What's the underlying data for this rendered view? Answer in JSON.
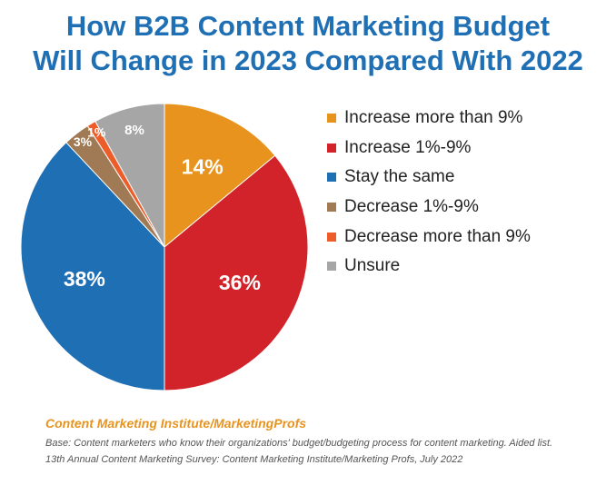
{
  "title_lines": [
    "How B2B Content Marketing Budget",
    "Will Change in 2023 Compared With 2022"
  ],
  "chart_data": {
    "type": "pie",
    "title": "How B2B Content Marketing Budget Will Change in 2023 Compared With 2022",
    "categories": [
      "Increase more than 9%",
      "Increase 1%-9%",
      "Stay the same",
      "Decrease 1%-9%",
      "Decrease more than 9%",
      "Unsure"
    ],
    "values": [
      14,
      36,
      38,
      3,
      1,
      8
    ],
    "labels": [
      "14%",
      "36%",
      "38%",
      "3%",
      "1%",
      "8%"
    ],
    "colors": [
      "#e8931e",
      "#d2232a",
      "#1f6fb5",
      "#a07a55",
      "#ec5d2a",
      "#a6a6a6"
    ],
    "start": "top, clockwise",
    "legend_position": "right"
  },
  "source": "Content Marketing Institute/MarketingProfs",
  "notes": [
    "Base: Content marketers who know their organizations' budget/budgeting process for content marketing. Aided list.",
    "13th Annual Content Marketing Survey: Content Marketing Institute/Marketing Profs, July 2022"
  ]
}
